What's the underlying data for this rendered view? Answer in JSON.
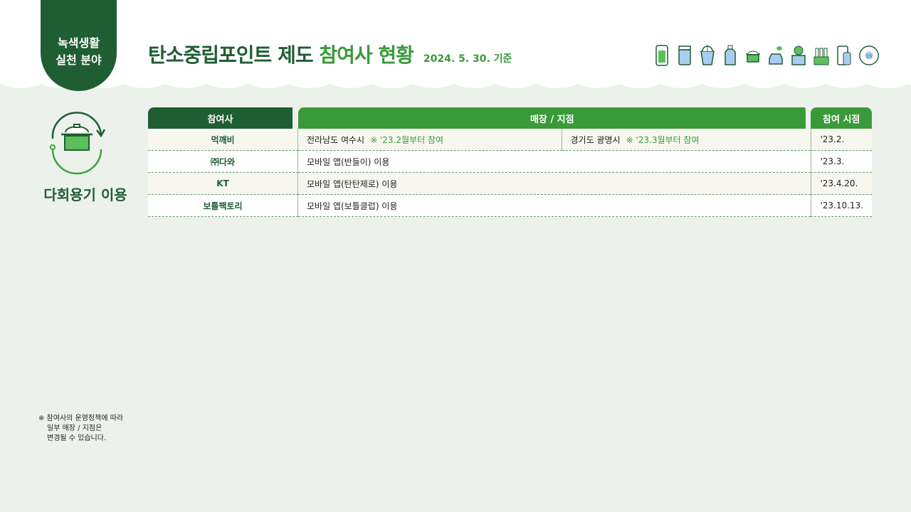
{
  "header": {
    "tag_line1": "녹색생활",
    "tag_line2": "실천 분야",
    "title_main": "탄소중립포인트 제도 ",
    "title_highlight": "참여사 현황",
    "date": "2024. 5. 30. 기준",
    "icons": [
      "tumbler-icon",
      "jar-icon",
      "cup-icon",
      "detergent-bottle-icon",
      "pot-icon",
      "electric-car-icon",
      "box-icon",
      "bottles-icon",
      "phone-icon",
      "recycle-15-icon"
    ]
  },
  "category": {
    "icon": "pot-cycle-icon",
    "label": "다회용기 이용"
  },
  "table": {
    "headers": [
      "참여사",
      "매장 / 지점",
      "참여 시점"
    ],
    "rows": [
      {
        "company": "먹깨비",
        "locations": [
          {
            "place": "전라남도 여수시",
            "note": "※ '23.2월부터 참여"
          },
          {
            "place": "경기도 광명시",
            "note": "※ '23.3월부터 참여"
          }
        ],
        "date": "'23.2."
      },
      {
        "company": "㈜다와",
        "locations": [
          {
            "place": "모바일 앱(반들이) 이용"
          }
        ],
        "date": "'23.3."
      },
      {
        "company": "KT",
        "locations": [
          {
            "place": "모바일 앱(탄탄제로) 이용"
          }
        ],
        "date": "'23.4.20."
      },
      {
        "company": "보틀팩토리",
        "locations": [
          {
            "place": "모바일 앱(보틀클럽) 이용"
          }
        ],
        "date": "'23.10.13."
      }
    ]
  },
  "note": {
    "line1": "※ 참여사의 운영정책에 따라",
    "line2": "일부 매장 / 지점은",
    "line3": "변경될 수 있습니다."
  },
  "colors": {
    "dark_green": "#1f5e33",
    "green": "#3a9a3a",
    "background": "#edf1eb"
  }
}
